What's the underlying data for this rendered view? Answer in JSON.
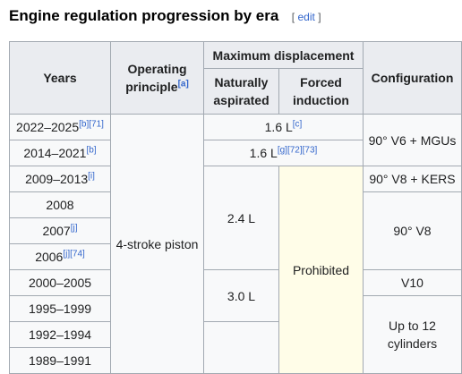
{
  "heading": {
    "title": "Engine regulation progression by era",
    "edit_open": "[",
    "edit_label": "edit",
    "edit_close": "]"
  },
  "table": {
    "headers": {
      "years": "Years",
      "operating_principle": "Operating principle",
      "operating_principle_note": "[a]",
      "max_displacement": "Maximum displacement",
      "naturally_aspirated": "Naturally aspirated",
      "forced_induction": "Forced induction",
      "configuration": "Configuration"
    },
    "rows": [
      {
        "years": "2022–2025",
        "refs": [
          "[b]",
          "[71]"
        ]
      },
      {
        "years": "2014–2021",
        "refs": [
          "[b]"
        ]
      },
      {
        "years": "2009–2013",
        "refs": [
          "[i]"
        ]
      },
      {
        "years": "2008",
        "refs": []
      },
      {
        "years": "2007",
        "refs": [
          "[j]"
        ]
      },
      {
        "years": "2006",
        "refs": [
          "[j]",
          "[74]"
        ]
      },
      {
        "years": "2000–2005",
        "refs": []
      },
      {
        "years": "1995–1999",
        "refs": []
      },
      {
        "years": "1992–1994",
        "refs": []
      },
      {
        "years": "1989–1991",
        "refs": []
      }
    ],
    "cells": {
      "operating_principle": "4-stroke piston",
      "disp_2022": "1.6 L",
      "disp_2022_refs": [
        "[c]"
      ],
      "disp_2014": "1.6 L",
      "disp_2014_refs": [
        "[g]",
        "[72]",
        "[73]"
      ],
      "na_2_4": "2.4 L",
      "na_3_0": "3.0 L",
      "forced_prohibited": "Prohibited",
      "config_v6": "90° V6 + MGUs",
      "config_v8_kers": "90° V8 + KERS",
      "config_v8": "90° V8",
      "config_v10": "V10",
      "config_up_to_12": "Up to 12 cylinders"
    }
  }
}
